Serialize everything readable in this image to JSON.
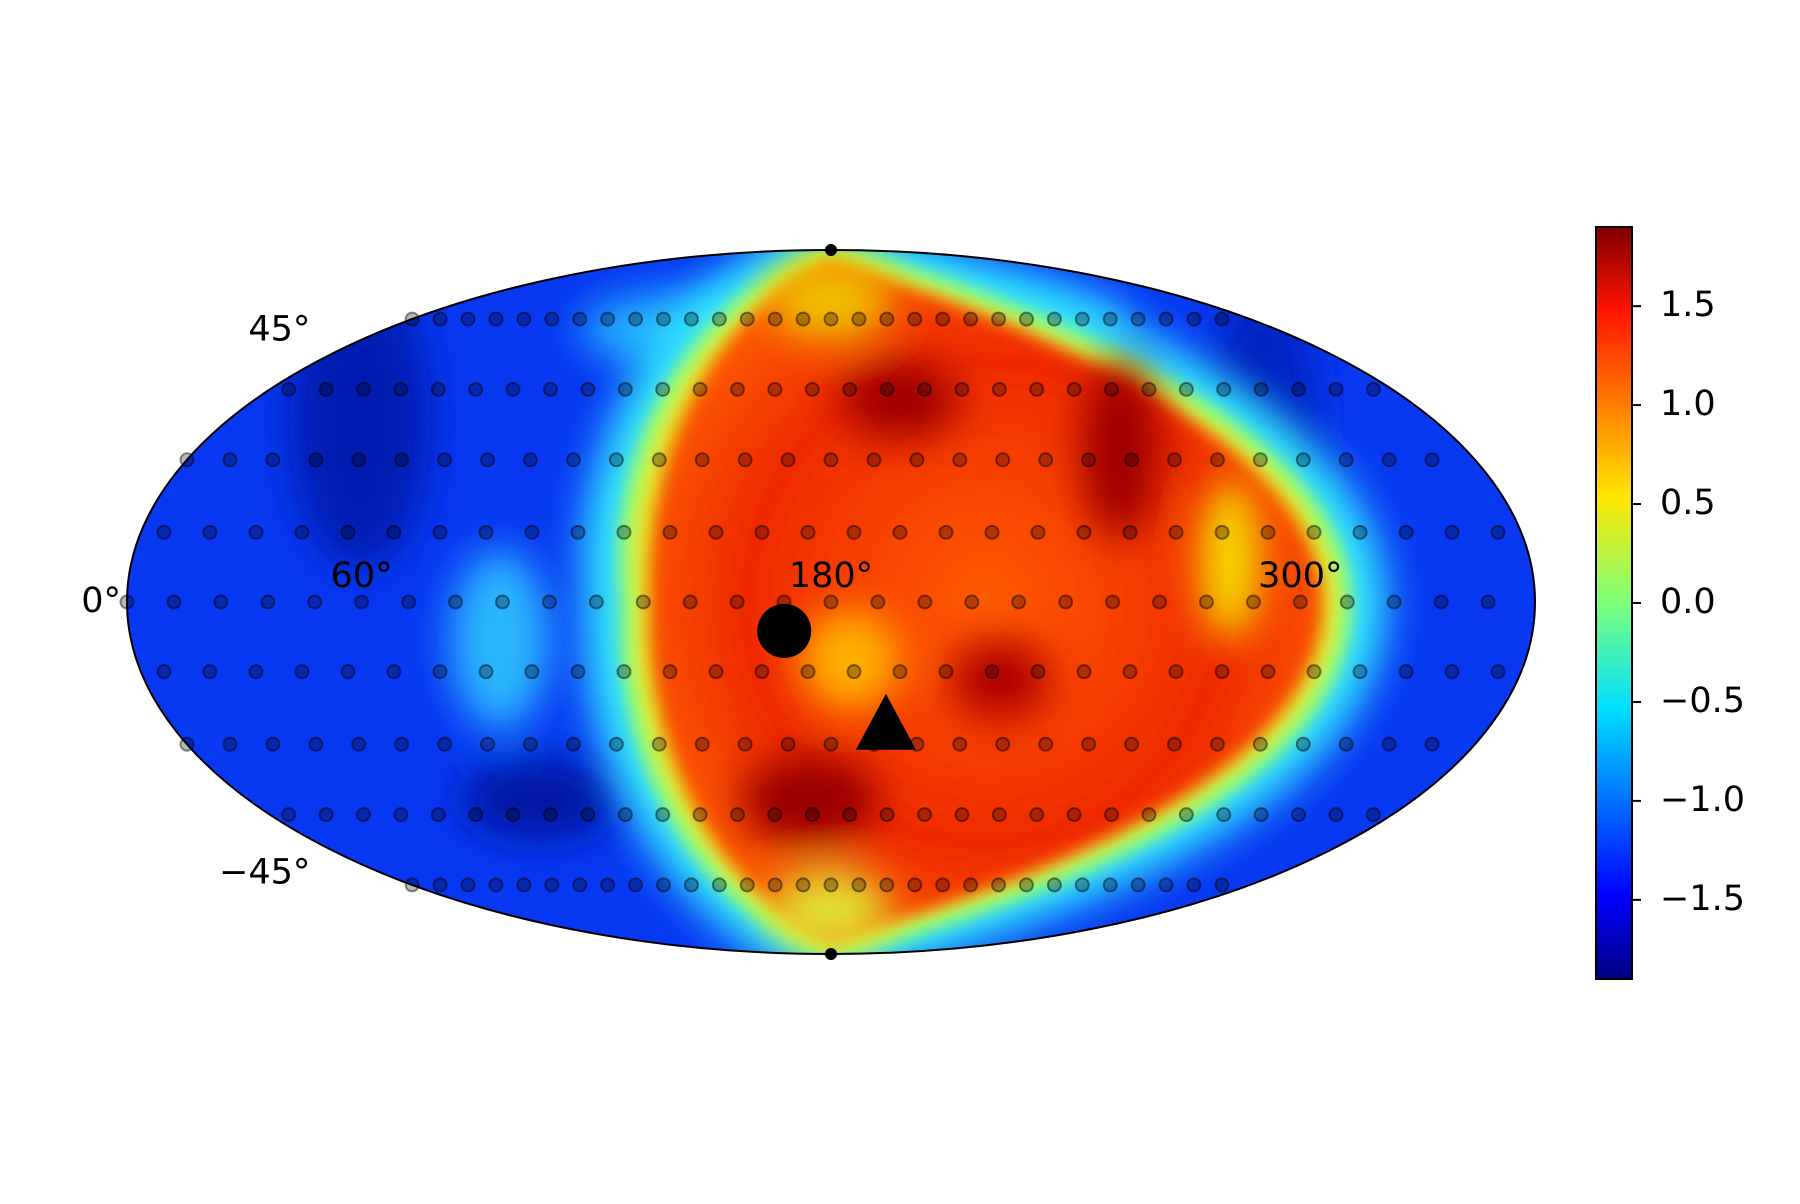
{
  "chart_data": {
    "type": "mollweide",
    "colormap": "jet",
    "lon_ticks": [
      {
        "value": 0,
        "label": "0°"
      },
      {
        "value": 60,
        "label": "60°"
      },
      {
        "value": 180,
        "label": "180°"
      },
      {
        "value": 300,
        "label": "300°"
      }
    ],
    "lat_ticks": [
      {
        "value": 45,
        "label": "45°"
      },
      {
        "value": -45,
        "label": "−45°"
      }
    ],
    "colorbar": {
      "lim": [
        -1.9,
        1.9
      ],
      "ticks": [
        {
          "value": -1.5,
          "label": "−1.5"
        },
        {
          "value": -1.0,
          "label": "−1.0"
        },
        {
          "value": -0.5,
          "label": "−0.5"
        },
        {
          "value": 0,
          "label": "0.0"
        },
        0.5,
        {
          "value": 1.0,
          "label": "1.0"
        },
        1.5
      ]
    },
    "sample_rows": [
      {
        "lat": 0,
        "lon_step": 12,
        "lon_start": 0
      },
      {
        "lat": 14.5,
        "lon_step": 12,
        "lon_start": 6
      },
      {
        "lat": -14.5,
        "lon_step": 12,
        "lon_start": 6
      },
      {
        "lat": 30,
        "lon_step": 12,
        "lon_start": 0
      },
      {
        "lat": -30,
        "lon_step": 12,
        "lon_start": 0
      },
      {
        "lat": 46,
        "lon_step": 12,
        "lon_start": 6
      },
      {
        "lat": -46,
        "lon_step": 12,
        "lon_start": 6
      },
      {
        "lat": 64,
        "lon_step": 12,
        "lon_start": 0
      },
      {
        "lat": -64,
        "lon_step": 12,
        "lon_start": 0
      }
    ],
    "markers": [
      {
        "shape": "circle",
        "lon": 168,
        "lat": -6
      },
      {
        "shape": "triangle",
        "lon": 195,
        "lat": -26
      }
    ]
  }
}
